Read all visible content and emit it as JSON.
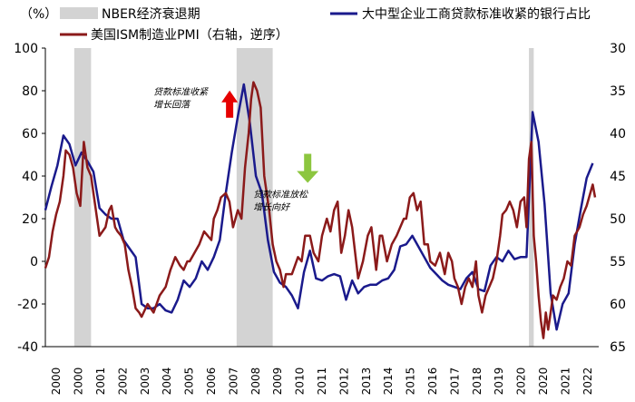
{
  "chart_data": {
    "type": "line",
    "left_unit_label": "（%）",
    "legend": {
      "nber": "NBER经济衰退期",
      "loan": "大中型企业工商贷款标准收紧的银行占比",
      "pmi": "美国ISM制造业PMI（右轴，逆序）"
    },
    "colors": {
      "loan": "#1a1a8c",
      "pmi": "#8b1a1a",
      "nber": "#d3d3d3",
      "up_arrow": "#e60000",
      "down_arrow": "#8cc63f"
    },
    "left_axis": {
      "min": -40,
      "max": 100,
      "ticks": [
        "100",
        "80",
        "60",
        "40",
        "20",
        "0",
        "-20",
        "-40"
      ]
    },
    "right_axis": {
      "min": 30,
      "max": 65,
      "reversed": true,
      "ticks": [
        "30",
        "35",
        "40",
        "45",
        "50",
        "55",
        "60",
        "65"
      ]
    },
    "x_axis": {
      "min": 2000.0,
      "max": 2023.0,
      "ticks": [
        "2000",
        "2000",
        "2001",
        "2002",
        "2003",
        "2004",
        "2005",
        "2006",
        "2007",
        "2008",
        "2009",
        "2010",
        "2011",
        "2012",
        "2013",
        "2014",
        "2015",
        "2016",
        "2017",
        "2018",
        "2019",
        "2020",
        "2020",
        "2021",
        "2022"
      ]
    },
    "recessions": [
      [
        2001.2,
        2001.9
      ],
      [
        2007.95,
        2009.45
      ],
      [
        2020.1,
        2020.3
      ]
    ],
    "annotations": [
      {
        "text_lines": [
          "贷款标准收紧",
          "增长回落"
        ],
        "x": 2006.0,
        "y_left": 78,
        "arrow": "up"
      },
      {
        "text_lines": [
          "贷款标准放松",
          "增长向好"
        ],
        "x": 2010.15,
        "y_left": 30,
        "arrow": "down"
      }
    ],
    "series": [
      {
        "name": "大中型企业工商贷款标准收紧的银行占比",
        "axis": "left",
        "points": [
          [
            2000.0,
            24
          ],
          [
            2000.25,
            35
          ],
          [
            2000.5,
            45
          ],
          [
            2000.75,
            59
          ],
          [
            2001.0,
            55
          ],
          [
            2001.25,
            45
          ],
          [
            2001.5,
            51
          ],
          [
            2001.75,
            47
          ],
          [
            2002.0,
            42
          ],
          [
            2002.25,
            25
          ],
          [
            2002.5,
            22
          ],
          [
            2002.75,
            20
          ],
          [
            2003.0,
            20
          ],
          [
            2003.25,
            10
          ],
          [
            2003.5,
            6
          ],
          [
            2003.75,
            2
          ],
          [
            2004.0,
            -20
          ],
          [
            2004.25,
            -22
          ],
          [
            2004.5,
            -22
          ],
          [
            2004.75,
            -20
          ],
          [
            2005.0,
            -23
          ],
          [
            2005.25,
            -24
          ],
          [
            2005.5,
            -18
          ],
          [
            2005.75,
            -9
          ],
          [
            2006.0,
            -12
          ],
          [
            2006.25,
            -8
          ],
          [
            2006.5,
            0
          ],
          [
            2006.75,
            -4
          ],
          [
            2007.0,
            2
          ],
          [
            2007.25,
            10
          ],
          [
            2007.5,
            32
          ],
          [
            2007.75,
            51
          ],
          [
            2008.0,
            68
          ],
          [
            2008.25,
            83
          ],
          [
            2008.5,
            65
          ],
          [
            2008.75,
            40
          ],
          [
            2009.0,
            32
          ],
          [
            2009.25,
            10
          ],
          [
            2009.5,
            -5
          ],
          [
            2009.75,
            -10
          ],
          [
            2010.0,
            -12
          ],
          [
            2010.25,
            -16
          ],
          [
            2010.5,
            -22
          ],
          [
            2010.75,
            -5
          ],
          [
            2011.0,
            5
          ],
          [
            2011.25,
            -8
          ],
          [
            2011.5,
            -9
          ],
          [
            2011.75,
            -7
          ],
          [
            2012.0,
            -6
          ],
          [
            2012.25,
            -7
          ],
          [
            2012.5,
            -18
          ],
          [
            2012.75,
            -9
          ],
          [
            2013.0,
            -15
          ],
          [
            2013.25,
            -12
          ],
          [
            2013.5,
            -11
          ],
          [
            2013.75,
            -11
          ],
          [
            2014.0,
            -9
          ],
          [
            2014.25,
            -8
          ],
          [
            2014.5,
            -4
          ],
          [
            2014.75,
            7
          ],
          [
            2015.0,
            8
          ],
          [
            2015.25,
            12
          ],
          [
            2015.5,
            7
          ],
          [
            2015.75,
            2
          ],
          [
            2016.0,
            -3
          ],
          [
            2016.25,
            -6
          ],
          [
            2016.5,
            -9
          ],
          [
            2016.75,
            -11
          ],
          [
            2017.0,
            -12
          ],
          [
            2017.25,
            -13
          ],
          [
            2017.5,
            -8
          ],
          [
            2017.75,
            -5
          ],
          [
            2018.0,
            -13
          ],
          [
            2018.25,
            -14
          ],
          [
            2018.5,
            -2
          ],
          [
            2018.75,
            2
          ],
          [
            2019.0,
            0
          ],
          [
            2019.25,
            5
          ],
          [
            2019.5,
            1
          ],
          [
            2019.75,
            2
          ],
          [
            2020.0,
            2
          ],
          [
            2020.25,
            70
          ],
          [
            2020.5,
            56
          ],
          [
            2020.75,
            27
          ],
          [
            2021.0,
            -15
          ],
          [
            2021.25,
            -32
          ],
          [
            2021.5,
            -20
          ],
          [
            2021.75,
            -15
          ],
          [
            2022.0,
            8
          ],
          [
            2022.25,
            24
          ],
          [
            2022.5,
            39
          ],
          [
            2022.75,
            46
          ]
        ]
      },
      {
        "name": "美国ISM制造业PMI（右轴，逆序）",
        "axis": "right",
        "points": [
          [
            2000.0,
            55.8
          ],
          [
            2000.15,
            54.5
          ],
          [
            2000.3,
            51.5
          ],
          [
            2000.45,
            49.5
          ],
          [
            2000.6,
            48
          ],
          [
            2000.75,
            45
          ],
          [
            2000.85,
            42
          ],
          [
            2001.0,
            42.5
          ],
          [
            2001.15,
            44
          ],
          [
            2001.3,
            47
          ],
          [
            2001.45,
            48.5
          ],
          [
            2001.6,
            41
          ],
          [
            2001.75,
            44
          ],
          [
            2001.9,
            45
          ],
          [
            2002.0,
            47
          ],
          [
            2002.25,
            52
          ],
          [
            2002.5,
            51
          ],
          [
            2002.65,
            49
          ],
          [
            2002.75,
            48.5
          ],
          [
            2002.9,
            51
          ],
          [
            2003.0,
            51.5
          ],
          [
            2003.15,
            52
          ],
          [
            2003.3,
            53
          ],
          [
            2003.45,
            56
          ],
          [
            2003.6,
            58
          ],
          [
            2003.75,
            60.5
          ],
          [
            2003.9,
            61
          ],
          [
            2004.0,
            61.5
          ],
          [
            2004.25,
            60
          ],
          [
            2004.5,
            61
          ],
          [
            2004.75,
            59
          ],
          [
            2005.0,
            58
          ],
          [
            2005.2,
            56
          ],
          [
            2005.4,
            54.5
          ],
          [
            2005.6,
            55.5
          ],
          [
            2005.75,
            56
          ],
          [
            2005.9,
            55
          ],
          [
            2006.0,
            55
          ],
          [
            2006.2,
            54
          ],
          [
            2006.4,
            53
          ],
          [
            2006.6,
            51.5
          ],
          [
            2006.75,
            52
          ],
          [
            2006.9,
            52.5
          ],
          [
            2007.0,
            50
          ],
          [
            2007.15,
            49
          ],
          [
            2007.3,
            47.5
          ],
          [
            2007.5,
            47
          ],
          [
            2007.65,
            48
          ],
          [
            2007.8,
            51
          ],
          [
            2008.0,
            49
          ],
          [
            2008.15,
            50
          ],
          [
            2008.3,
            44
          ],
          [
            2008.45,
            40
          ],
          [
            2008.55,
            36
          ],
          [
            2008.65,
            34
          ],
          [
            2008.8,
            35
          ],
          [
            2008.95,
            37
          ],
          [
            2009.1,
            45
          ],
          [
            2009.3,
            49
          ],
          [
            2009.45,
            53
          ],
          [
            2009.6,
            55
          ],
          [
            2009.75,
            56
          ],
          [
            2009.9,
            58
          ],
          [
            2010.0,
            56.5
          ],
          [
            2010.25,
            56.5
          ],
          [
            2010.5,
            54.5
          ],
          [
            2010.65,
            55
          ],
          [
            2010.8,
            52
          ],
          [
            2011.0,
            52
          ],
          [
            2011.15,
            54
          ],
          [
            2011.35,
            55
          ],
          [
            2011.5,
            52
          ],
          [
            2011.7,
            50
          ],
          [
            2011.85,
            51.5
          ],
          [
            2012.0,
            49
          ],
          [
            2012.15,
            48
          ],
          [
            2012.3,
            54
          ],
          [
            2012.45,
            52
          ],
          [
            2012.6,
            49
          ],
          [
            2012.75,
            51
          ],
          [
            2013.0,
            57
          ],
          [
            2013.2,
            55
          ],
          [
            2013.4,
            52
          ],
          [
            2013.55,
            51
          ],
          [
            2013.75,
            56
          ],
          [
            2013.9,
            52
          ],
          [
            2014.0,
            52
          ],
          [
            2014.2,
            55
          ],
          [
            2014.4,
            53
          ],
          [
            2014.6,
            52
          ],
          [
            2014.75,
            51
          ],
          [
            2014.9,
            50
          ],
          [
            2015.0,
            50
          ],
          [
            2015.15,
            47.5
          ],
          [
            2015.3,
            47
          ],
          [
            2015.45,
            49
          ],
          [
            2015.6,
            48
          ],
          [
            2015.75,
            53
          ],
          [
            2015.9,
            53
          ],
          [
            2016.0,
            55
          ],
          [
            2016.2,
            55.5
          ],
          [
            2016.4,
            54
          ],
          [
            2016.6,
            56.5
          ],
          [
            2016.75,
            54
          ],
          [
            2016.9,
            55
          ],
          [
            2017.0,
            57
          ],
          [
            2017.15,
            58
          ],
          [
            2017.3,
            60
          ],
          [
            2017.45,
            58
          ],
          [
            2017.6,
            57
          ],
          [
            2017.75,
            58
          ],
          [
            2017.9,
            55
          ],
          [
            2018.0,
            59
          ],
          [
            2018.15,
            61
          ],
          [
            2018.3,
            59
          ],
          [
            2018.45,
            58
          ],
          [
            2018.6,
            57
          ],
          [
            2018.75,
            55
          ],
          [
            2018.9,
            52
          ],
          [
            2019.0,
            49.5
          ],
          [
            2019.15,
            49
          ],
          [
            2019.3,
            48
          ],
          [
            2019.45,
            49
          ],
          [
            2019.6,
            51
          ],
          [
            2019.75,
            48
          ],
          [
            2019.9,
            47.5
          ],
          [
            2020.0,
            51
          ],
          [
            2020.1,
            43
          ],
          [
            2020.2,
            41
          ],
          [
            2020.3,
            52
          ],
          [
            2020.4,
            55
          ],
          [
            2020.5,
            59
          ],
          [
            2020.6,
            62
          ],
          [
            2020.7,
            64
          ],
          [
            2020.8,
            61
          ],
          [
            2020.9,
            63
          ],
          [
            2021.0,
            61
          ],
          [
            2021.1,
            59
          ],
          [
            2021.25,
            59.5
          ],
          [
            2021.4,
            58
          ],
          [
            2021.55,
            57
          ],
          [
            2021.7,
            55
          ],
          [
            2021.85,
            55.5
          ],
          [
            2022.0,
            52
          ],
          [
            2022.2,
            51
          ],
          [
            2022.35,
            49.5
          ],
          [
            2022.5,
            48.5
          ],
          [
            2022.65,
            47
          ],
          [
            2022.75,
            46
          ],
          [
            2022.85,
            47.5
          ]
        ]
      }
    ]
  }
}
